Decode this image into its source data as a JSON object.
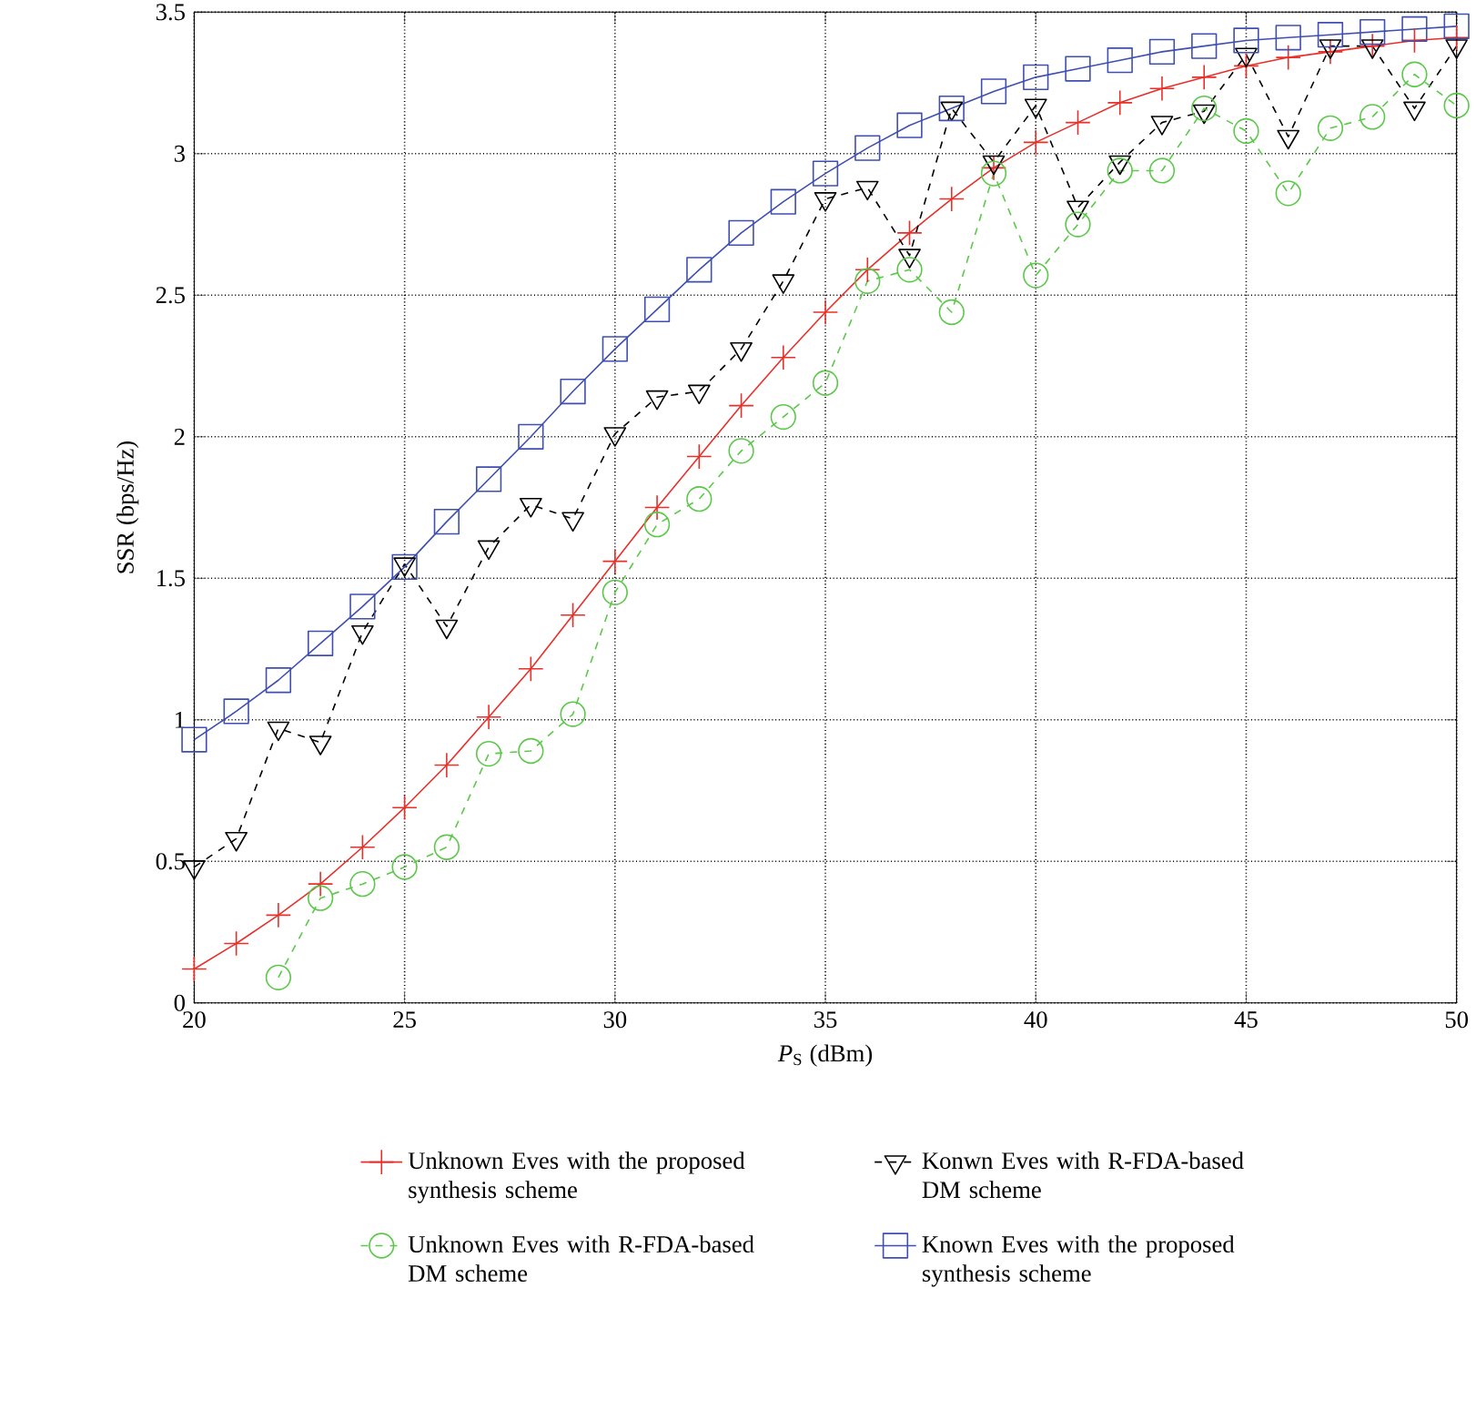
{
  "chart_data": {
    "type": "line",
    "xlabel": "*P*$_{S}$ (dBm)",
    "ylabel": "SSR (bps/Hz)",
    "xlim": [
      20,
      50
    ],
    "ylim": [
      0,
      3.5
    ],
    "xticks": [
      20,
      25,
      30,
      35,
      40,
      45,
      50
    ],
    "yticks": [
      0,
      0.5,
      1,
      1.5,
      2,
      2.5,
      3,
      3.5
    ],
    "grid": true,
    "legend": "bottom",
    "x": [
      20,
      21,
      22,
      23,
      24,
      25,
      26,
      27,
      28,
      29,
      30,
      31,
      32,
      33,
      34,
      35,
      36,
      37,
      38,
      39,
      40,
      41,
      42,
      43,
      44,
      45,
      46,
      47,
      48,
      49,
      50
    ],
    "series": [
      {
        "name": "Unknown Eves with the proposed synthesis scheme",
        "color": "#e8302a",
        "marker": "cross",
        "line_style": "solid",
        "values": [
          0.12,
          0.21,
          0.31,
          0.42,
          0.55,
          0.69,
          0.84,
          1.01,
          1.18,
          1.37,
          1.56,
          1.75,
          1.93,
          2.11,
          2.28,
          2.44,
          2.59,
          2.72,
          2.84,
          2.95,
          3.04,
          3.11,
          3.18,
          3.23,
          3.27,
          3.31,
          3.34,
          3.36,
          3.38,
          3.4,
          3.41
        ]
      },
      {
        "name": "Konwn Eves with R-FDA-based DM scheme",
        "color": "#000000",
        "marker": "triangle",
        "line_style": "dashed",
        "values": [
          0.48,
          0.58,
          0.97,
          0.92,
          1.31,
          1.55,
          1.33,
          1.61,
          1.76,
          1.71,
          2.01,
          2.14,
          2.16,
          2.31,
          2.55,
          2.84,
          2.88,
          2.64,
          3.16,
          2.97,
          3.17,
          2.81,
          2.97,
          3.11,
          3.15,
          3.35,
          3.06,
          3.38,
          3.38,
          3.16,
          3.38
        ]
      },
      {
        "name": "Unknown Eves with R-FDA-based DM scheme",
        "color": "#5cc84a",
        "marker": "circle",
        "line_style": "dashed",
        "x": [
          22,
          23,
          24,
          25,
          26,
          27,
          28,
          29,
          30,
          31,
          32,
          33,
          34,
          35,
          36,
          37,
          38,
          39,
          40,
          41,
          42,
          43,
          44,
          45,
          46,
          47,
          48,
          49,
          50
        ],
        "values": [
          0.09,
          0.37,
          0.42,
          0.48,
          0.55,
          0.88,
          0.89,
          1.02,
          1.45,
          1.69,
          1.78,
          1.95,
          2.07,
          2.19,
          2.55,
          2.59,
          2.44,
          2.93,
          2.57,
          2.75,
          2.94,
          2.94,
          3.16,
          3.08,
          2.86,
          3.09,
          3.13,
          3.28,
          3.17
        ]
      },
      {
        "name": "Known Eves with the proposed synthesis scheme",
        "color": "#3f4fb0",
        "marker": "square",
        "line_style": "solid",
        "values": [
          0.93,
          1.03,
          1.14,
          1.27,
          1.4,
          1.54,
          1.7,
          1.85,
          2.0,
          2.16,
          2.31,
          2.45,
          2.59,
          2.72,
          2.83,
          2.93,
          3.02,
          3.1,
          3.16,
          3.22,
          3.27,
          3.3,
          3.33,
          3.36,
          3.38,
          3.4,
          3.41,
          3.42,
          3.43,
          3.44,
          3.45
        ]
      }
    ]
  }
}
